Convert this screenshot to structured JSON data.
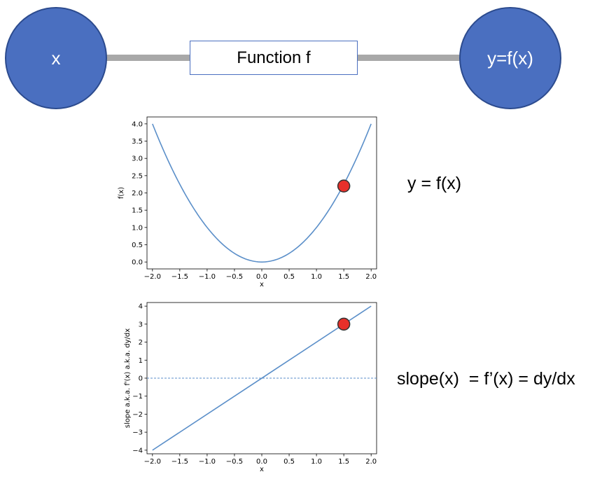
{
  "diagram": {
    "input_node": "x",
    "function_box": "Function f",
    "output_node": "y=f(x)",
    "node_color": "#4a6fc0",
    "connector_color": "#a8a8a8"
  },
  "equations": {
    "function": "y = f(x)",
    "slope": "slope(x)  = f’(x) = dy/dx"
  },
  "chart_data": [
    {
      "type": "line",
      "title": "",
      "xlabel": "x",
      "ylabel": "f(x)",
      "xlim": [
        -2.1,
        2.1
      ],
      "ylim": [
        -0.2,
        4.2
      ],
      "xticks": [
        -2.0,
        -1.5,
        -1.0,
        -0.5,
        0.0,
        0.5,
        1.0,
        1.5,
        2.0
      ],
      "xtick_labels": [
        "−2.0",
        "−1.5",
        "−1.0",
        "−0.5",
        "0.0",
        "0.5",
        "1.0",
        "1.5",
        "2.0"
      ],
      "yticks": [
        0.0,
        0.5,
        1.0,
        1.5,
        2.0,
        2.5,
        3.0,
        3.5,
        4.0
      ],
      "ytick_labels": [
        "0.0",
        "0.5",
        "1.0",
        "1.5",
        "2.0",
        "2.5",
        "3.0",
        "3.5",
        "4.0"
      ],
      "series": [
        {
          "x": [
            -2.0,
            -1.75,
            -1.5,
            -1.25,
            -1.0,
            -0.75,
            -0.5,
            -0.25,
            0.0,
            0.25,
            0.5,
            0.75,
            1.0,
            1.25,
            1.5,
            1.75,
            2.0
          ],
          "y": [
            4.0,
            3.0625,
            2.25,
            1.5625,
            1.0,
            0.5625,
            0.25,
            0.0625,
            0.0,
            0.0625,
            0.25,
            0.5625,
            1.0,
            1.5625,
            2.25,
            3.0625,
            4.0
          ],
          "color": "#5b8fc9"
        }
      ],
      "marker": {
        "x": 1.5,
        "y": 2.2,
        "color": "#e8302a"
      },
      "grid": false
    },
    {
      "type": "line",
      "title": "",
      "xlabel": "x",
      "ylabel": "slope a.k.a. f'(x) a.k.a. dy/dx",
      "xlim": [
        -2.1,
        2.1
      ],
      "ylim": [
        -4.2,
        4.2
      ],
      "xticks": [
        -2.0,
        -1.5,
        -1.0,
        -0.5,
        0.0,
        0.5,
        1.0,
        1.5,
        2.0
      ],
      "xtick_labels": [
        "−2.0",
        "−1.5",
        "−1.0",
        "−0.5",
        "0.0",
        "0.5",
        "1.0",
        "1.5",
        "2.0"
      ],
      "yticks": [
        -4,
        -3,
        -2,
        -1,
        0,
        1,
        2,
        3,
        4
      ],
      "ytick_labels": [
        "−4",
        "−3",
        "−2",
        "−1",
        "0",
        "1",
        "2",
        "3",
        "4"
      ],
      "series": [
        {
          "x": [
            -2.0,
            2.0
          ],
          "y": [
            -4.0,
            4.0
          ],
          "color": "#5b8fc9"
        }
      ],
      "reference_line": {
        "y": 0,
        "style": "dashed"
      },
      "marker": {
        "x": 1.5,
        "y": 3.0,
        "color": "#e8302a"
      },
      "grid": false
    }
  ]
}
